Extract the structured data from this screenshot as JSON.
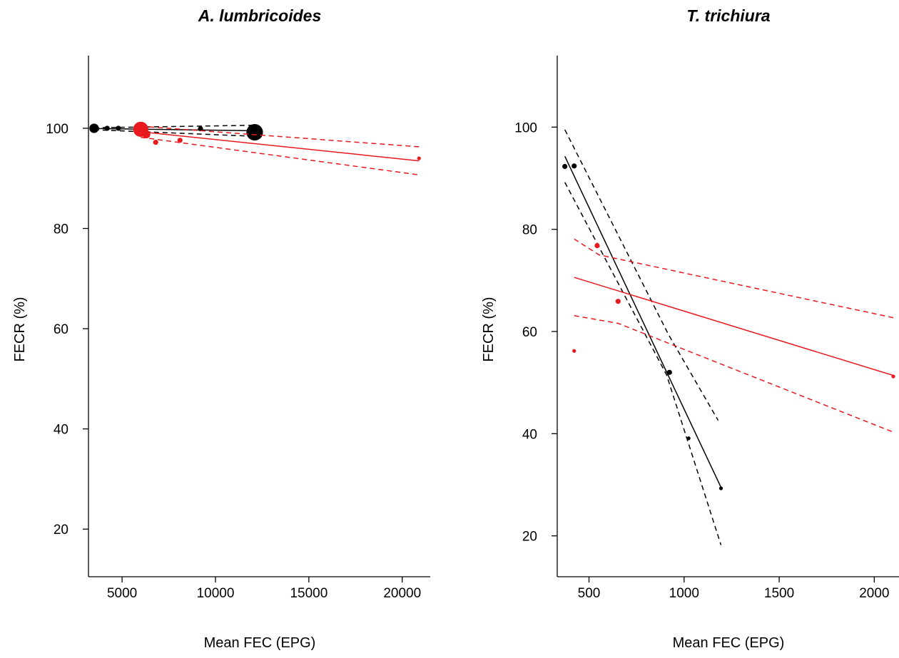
{
  "chart_data": [
    {
      "type": "scatter",
      "title": "A. lumbricoides",
      "xlabel": "Mean FEC (EPG)",
      "ylabel": "FECR (%)",
      "x_ticks": [
        "5000",
        "10000",
        "15000",
        "20000"
      ],
      "y_ticks": [
        "20",
        "40",
        "60",
        "80",
        "100"
      ],
      "xlim": [
        3200,
        21500
      ],
      "ylim": [
        10.5,
        114.5
      ],
      "series": [
        {
          "color": "#000000",
          "points": [
            {
              "x": 3500,
              "y": 100.0,
              "size": 6
            },
            {
              "x": 4200,
              "y": 100.0,
              "size": 3
            },
            {
              "x": 4800,
              "y": 100.0,
              "size": 3
            },
            {
              "x": 9200,
              "y": 99.9,
              "size": 3
            },
            {
              "x": 12100,
              "y": 99.2,
              "size": 11
            }
          ],
          "fit": {
            "x": [
              3500,
              12100
            ],
            "y": [
              99.95,
              99.5
            ]
          },
          "ci_upper": {
            "x": [
              3500,
              12100
            ],
            "y": [
              100.1,
              100.6
            ]
          },
          "ci_lower": {
            "x": [
              3500,
              12100
            ],
            "y": [
              99.7,
              98.4
            ]
          }
        },
        {
          "color": "#e8191f",
          "points": [
            {
              "x": 6000,
              "y": 99.8,
              "size": 10
            },
            {
              "x": 6300,
              "y": 98.8,
              "size": 5
            },
            {
              "x": 6800,
              "y": 97.2,
              "size": 3
            },
            {
              "x": 8100,
              "y": 97.6,
              "size": 3
            },
            {
              "x": 20900,
              "y": 94.0,
              "size": 2
            }
          ],
          "fit": {
            "x": [
              6000,
              20900
            ],
            "y": [
              99.3,
              93.5
            ]
          },
          "ci_upper": {
            "x": [
              6000,
              20900
            ],
            "y": [
              100.4,
              96.3
            ]
          },
          "ci_lower": {
            "x": [
              6000,
              20900
            ],
            "y": [
              98.2,
              90.7
            ]
          }
        }
      ]
    },
    {
      "type": "scatter",
      "title": "T. trichiura",
      "xlabel": "Mean FEC (EPG)",
      "ylabel": "FECR (%)",
      "x_ticks": [
        "500",
        "1000",
        "1500",
        "2000"
      ],
      "y_ticks": [
        "20",
        "40",
        "60",
        "80",
        "100"
      ],
      "xlim": [
        333,
        2130
      ],
      "ylim": [
        12,
        114
      ],
      "series": [
        {
          "color": "#000000",
          "points": [
            {
              "x": 373,
              "y": 92.3,
              "size": 3
            },
            {
              "x": 422,
              "y": 92.4,
              "size": 3
            },
            {
              "x": 923,
              "y": 52.0,
              "size": 3
            },
            {
              "x": 1024,
              "y": 39.1,
              "size": 2
            },
            {
              "x": 1194,
              "y": 29.3,
              "size": 2
            }
          ],
          "fit": {
            "x": [
              373,
              1194
            ],
            "y": [
              94.3,
              29.5
            ]
          },
          "ci_upper": {
            "x": [
              373,
              918,
              1179
            ],
            "y": [
              99.5,
              59.4,
              42.6
            ]
          },
          "ci_lower": {
            "x": [
              373,
              908,
              1194
            ],
            "y": [
              89.2,
              51.5,
              18.2
            ]
          }
        },
        {
          "color": "#e8191f",
          "points": [
            {
              "x": 422,
              "y": 56.2,
              "size": 2
            },
            {
              "x": 543,
              "y": 76.8,
              "size": 3
            },
            {
              "x": 653,
              "y": 65.9,
              "size": 3
            },
            {
              "x": 2100,
              "y": 51.2,
              "size": 2
            }
          ],
          "fit": {
            "x": [
              422,
              2100
            ],
            "y": [
              70.6,
              51.4
            ]
          },
          "ci_upper": {
            "x": [
              422,
              553,
              2100
            ],
            "y": [
              78.1,
              75.0,
              62.7
            ]
          },
          "ci_lower": {
            "x": [
              422,
              653,
              2100
            ],
            "y": [
              63.1,
              61.6,
              40.3
            ]
          }
        }
      ]
    }
  ]
}
